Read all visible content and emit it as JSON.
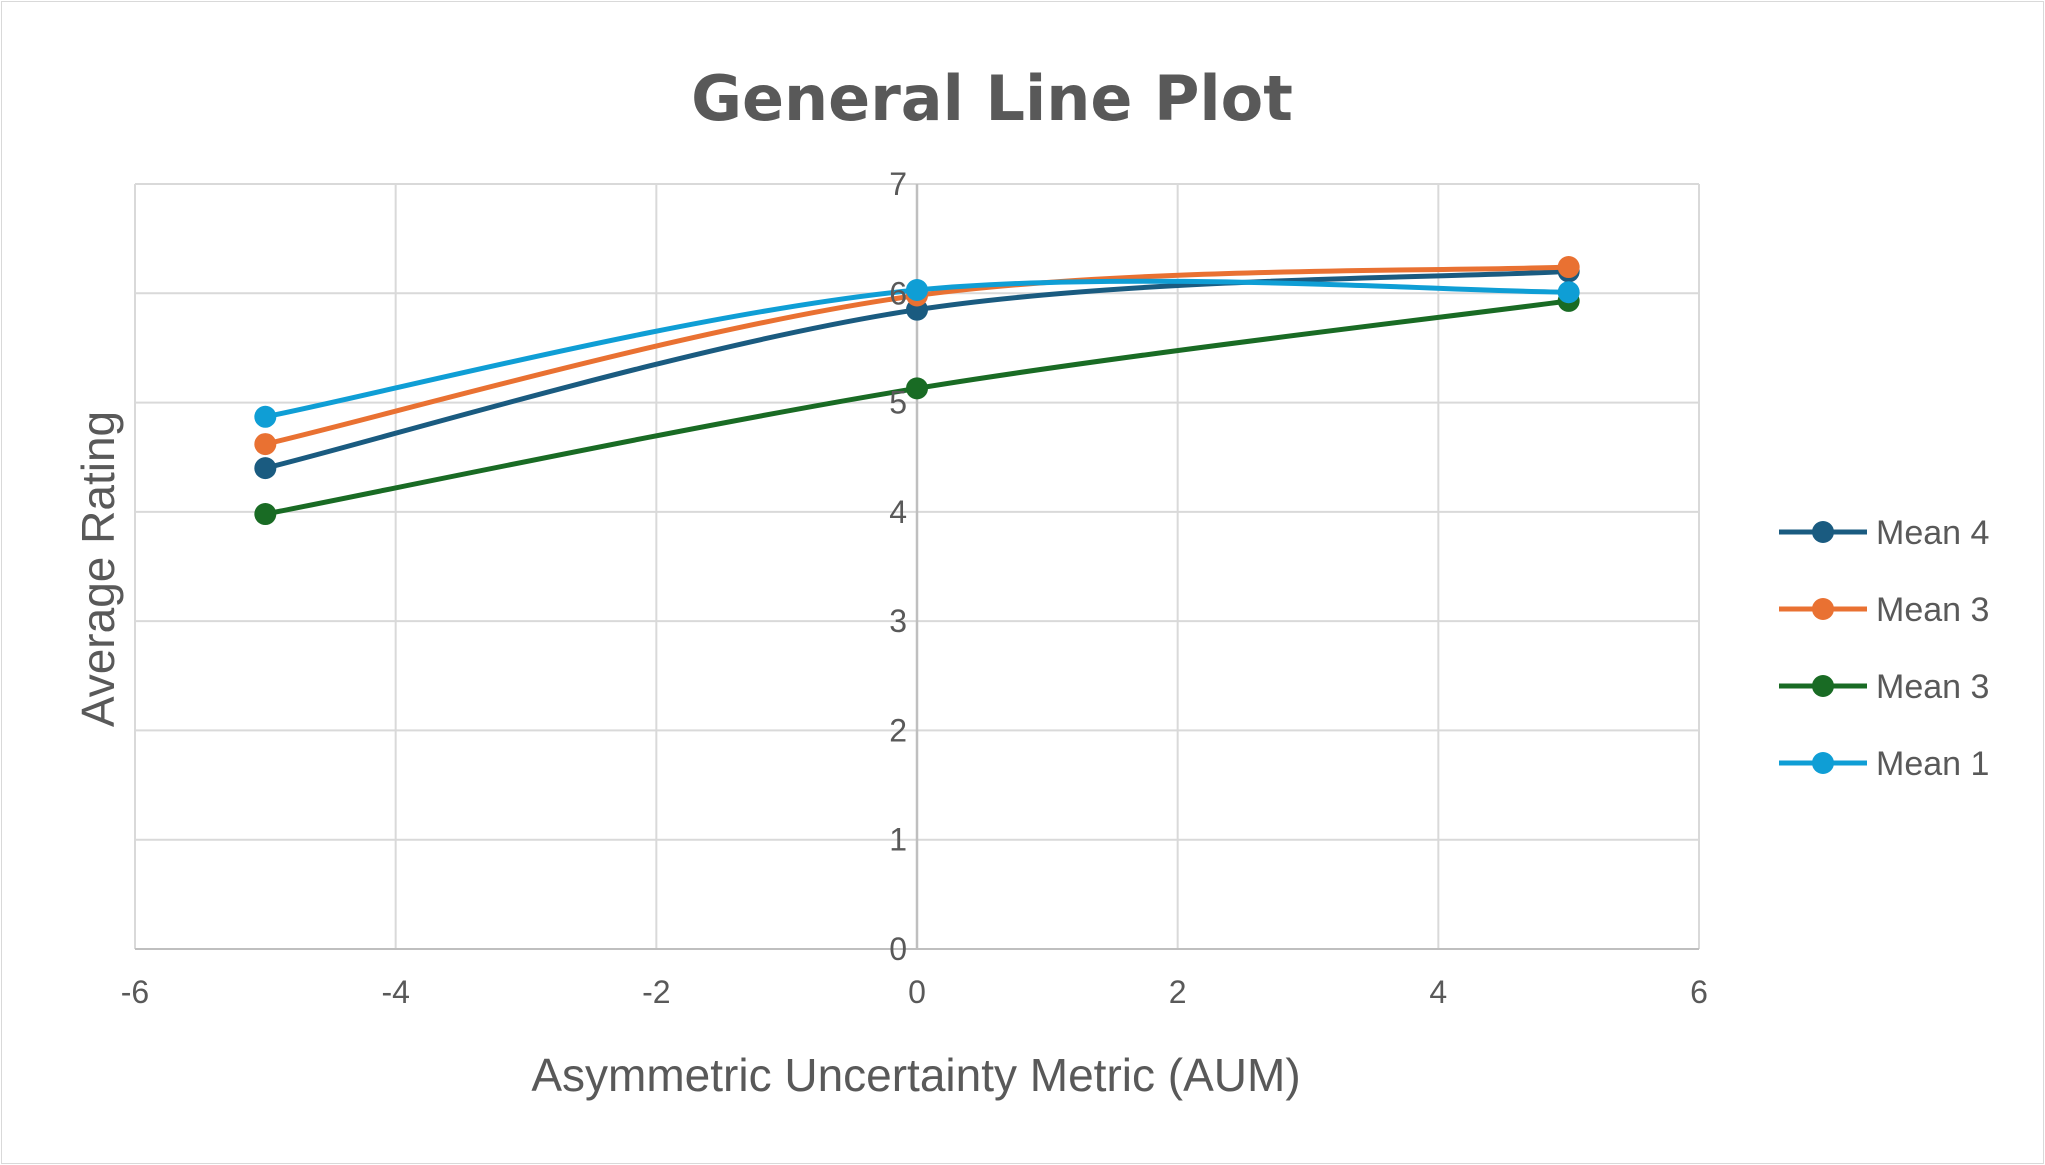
{
  "chart_data": {
    "type": "line",
    "title": "General Line Plot",
    "xlabel": "Asymmetric Uncertainty Metric (AUM)",
    "ylabel": "Average Rating",
    "xlim": [
      -6,
      6
    ],
    "ylim": [
      0,
      7
    ],
    "xticks": [
      "-6",
      "-4",
      "-2",
      "0",
      "2",
      "4",
      "6"
    ],
    "yticks": [
      "0",
      "1",
      "2",
      "3",
      "4",
      "5",
      "6",
      "7"
    ],
    "grid": true,
    "legend_position": "right",
    "x": [
      -5,
      0,
      5
    ],
    "series": [
      {
        "name": "Mean 4",
        "color": "#1a5b80",
        "values": [
          4.4,
          5.85,
          6.2
        ]
      },
      {
        "name": "Mean 3",
        "color": "#e97132",
        "values": [
          4.62,
          5.98,
          6.24
        ]
      },
      {
        "name": "Mean 3",
        "color": "#196b24",
        "values": [
          3.98,
          5.13,
          5.93
        ]
      },
      {
        "name": "Mean 1",
        "color": "#0f9ed5",
        "values": [
          4.87,
          6.03,
          6.01
        ]
      }
    ]
  }
}
